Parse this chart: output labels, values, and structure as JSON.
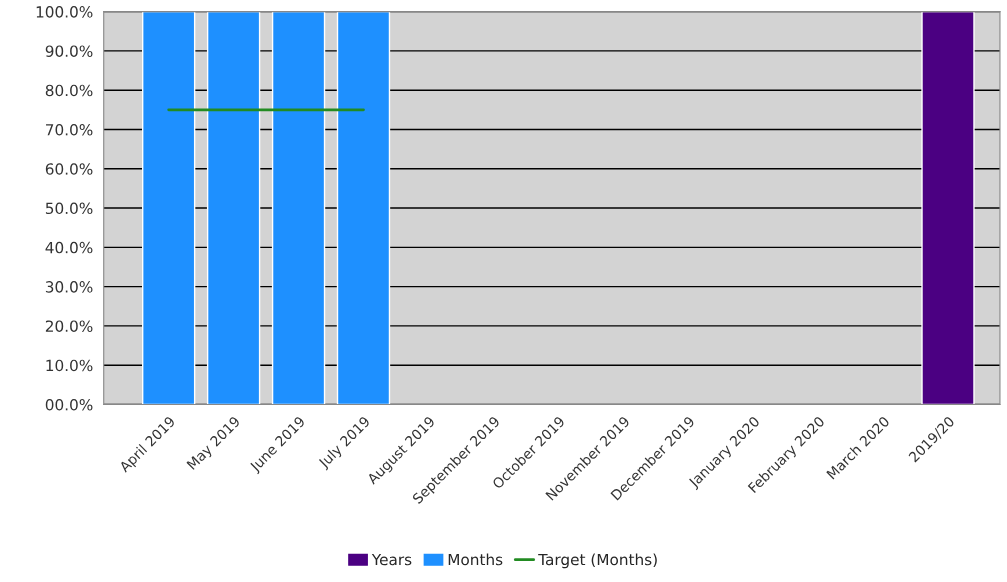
{
  "chart_data": {
    "type": "bar",
    "categories": [
      "April 2019",
      "May 2019",
      "June 2019",
      "July 2019",
      "August 2019",
      "September 2019",
      "October 2019",
      "November 2019",
      "December 2019",
      "January 2020",
      "February 2020",
      "March 2020",
      "2019/20"
    ],
    "series": [
      {
        "name": "Years",
        "color": "#4b0082",
        "values": [
          null,
          null,
          null,
          null,
          null,
          null,
          null,
          null,
          null,
          null,
          null,
          null,
          100
        ]
      },
      {
        "name": "Months",
        "color": "#1e90ff",
        "values": [
          100,
          100,
          100,
          100,
          null,
          null,
          null,
          null,
          null,
          null,
          null,
          null,
          null
        ]
      },
      {
        "name": "Target (Months)",
        "type": "line",
        "color": "#228b22",
        "values": [
          75,
          75,
          75,
          75,
          null,
          null,
          null,
          null,
          null,
          null,
          null,
          null,
          null
        ]
      }
    ],
    "ylim": [
      0,
      100
    ],
    "yticks": [
      {
        "value": 0,
        "label": "00.0%"
      },
      {
        "value": 10,
        "label": "10.0%"
      },
      {
        "value": 20,
        "label": "20.0%"
      },
      {
        "value": 30,
        "label": "30.0%"
      },
      {
        "value": 40,
        "label": "40.0%"
      },
      {
        "value": 50,
        "label": "50.0%"
      },
      {
        "value": 60,
        "label": "60.0%"
      },
      {
        "value": 70,
        "label": "70.0%"
      },
      {
        "value": 80,
        "label": "80.0%"
      },
      {
        "value": 90,
        "label": "90.0%"
      },
      {
        "value": 100,
        "label": "100.0%"
      }
    ],
    "grid": "y",
    "legend": "bottom",
    "marker": "none",
    "line_style": "solid"
  }
}
